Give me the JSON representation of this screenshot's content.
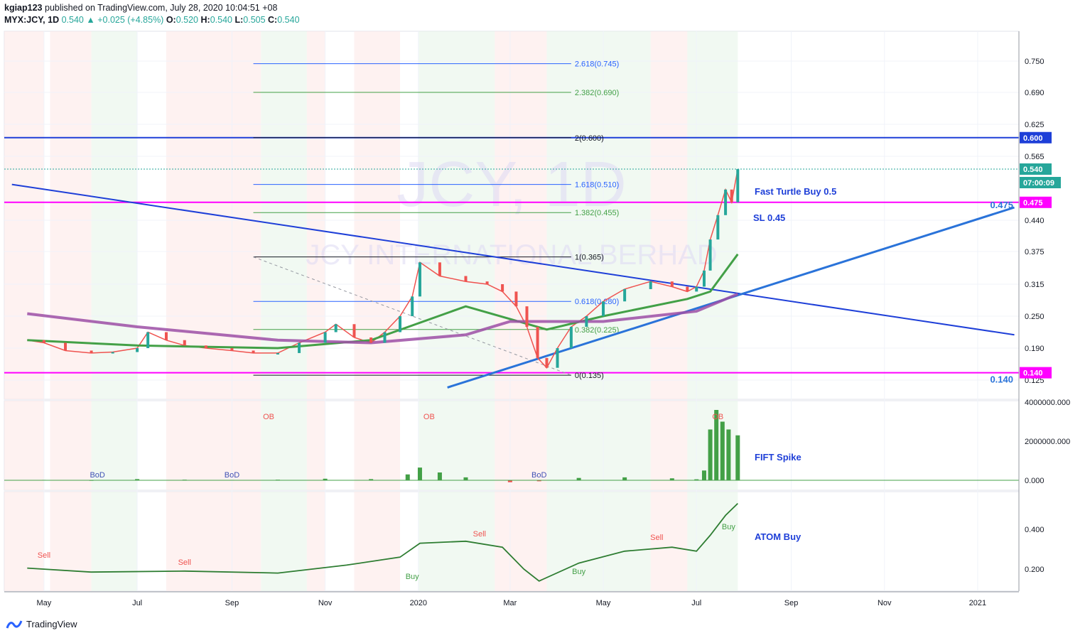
{
  "header": {
    "publisher": "kgiap123",
    "published_text": "published on TradingView.com, July 28, 2020 10:04:51 +08",
    "symbol": "MYX:JCY, 1D",
    "last": "0.540",
    "change": "+0.025 (+4.85%)",
    "o_label": "O:",
    "o": "0.520",
    "h_label": "H:",
    "h": "0.540",
    "l_label": "L:",
    "l": "0.505",
    "c_label": "C:",
    "c": "0.540"
  },
  "watermark": {
    "line1": "JCY, 1D",
    "line2": "JCY INTERNATIONAL BERHAD"
  },
  "footer": {
    "brand": "TradingView"
  },
  "colors": {
    "up": "#26a69a",
    "down": "#ef5350",
    "magenta": "#ff00ff",
    "blue": "#1e3fd8",
    "ema200": "#9c4fa6",
    "ema50": "#43a047",
    "ema_fast": "#ef5350"
  },
  "chart_data": [
    {
      "type": "line",
      "pane": "price",
      "x_ticks": [
        "May",
        "Jul",
        "Sep",
        "Nov",
        "2020",
        "Mar",
        "May",
        "Jul",
        "Sep",
        "Nov",
        "2021"
      ],
      "y_ticks": [
        "0.750",
        "0.690",
        "0.625",
        "0.565",
        "0.440",
        "0.375",
        "0.315",
        "0.250",
        "0.190",
        "0.125"
      ],
      "ylim": [
        0.11,
        0.79
      ],
      "price_badges": [
        {
          "value": "0.600",
          "color": "#1e3fd8"
        },
        {
          "value": "0.540",
          "color": "#26a69a"
        },
        {
          "value": "07:00:09",
          "color": "#26a69a"
        },
        {
          "value": "0.475",
          "color": "#ff00ff"
        },
        {
          "value": "0.140",
          "color": "#ff00ff"
        }
      ],
      "right_labels": [
        "0.475",
        "0.140"
      ],
      "fib_levels": [
        {
          "label": "2.618(0.745)",
          "value": 0.745
        },
        {
          "label": "2.382(0.690)",
          "value": 0.69
        },
        {
          "label": "2(0.600)",
          "value": 0.6
        },
        {
          "label": "1.618(0.510)",
          "value": 0.51
        },
        {
          "label": "1.382(0.455)",
          "value": 0.455
        },
        {
          "label": "1(0.365)",
          "value": 0.365
        },
        {
          "label": "0.618(0.280)",
          "value": 0.28
        },
        {
          "label": "0.382(0.225)",
          "value": 0.225
        },
        {
          "label": "0(0.135)",
          "value": 0.135
        }
      ],
      "horizontal_lines": [
        {
          "value": 0.6,
          "color": "#1e3fd8"
        },
        {
          "value": 0.475,
          "color": "#ff00ff"
        },
        {
          "value": 0.14,
          "color": "#ff00ff"
        },
        {
          "value": 0.54,
          "color": "#26a69a",
          "style": "dotted"
        }
      ],
      "annotations": [
        "Fast Turtle Buy 0.5",
        "SL 0.45"
      ],
      "series": [
        {
          "name": "",
          "x": [
            "2019-04-20",
            "2019-05-01",
            "2019-05-15",
            "2019-06-01",
            "2019-06-15",
            "2019-07-01",
            "2019-07-08",
            "2019-07-20",
            "2019-08-01",
            "2019-08-15",
            "2019-09-01",
            "2019-09-15",
            "2019-10-01",
            "2019-10-15",
            "2019-11-01",
            "2019-11-08",
            "2019-11-20",
            "2019-12-01",
            "2019-12-10",
            "2019-12-20",
            "2019-12-28",
            "2020-01-02",
            "2020-01-15",
            "2020-02-01",
            "2020-02-15",
            "2020-02-25",
            "2020-03-05",
            "2020-03-12",
            "2020-03-19",
            "2020-03-25",
            "2020-04-01",
            "2020-04-10",
            "2020-04-20",
            "2020-05-01",
            "2020-05-15",
            "2020-06-01",
            "2020-06-15",
            "2020-06-25",
            "2020-07-01",
            "2020-07-06",
            "2020-07-10",
            "2020-07-15",
            "2020-07-20",
            "2020-07-24",
            "2020-07-28"
          ],
          "values": [
            0.205,
            0.2,
            0.185,
            0.18,
            0.182,
            0.19,
            0.22,
            0.205,
            0.195,
            0.19,
            0.185,
            0.18,
            0.18,
            0.2,
            0.22,
            0.235,
            0.21,
            0.2,
            0.22,
            0.25,
            0.29,
            0.355,
            0.33,
            0.32,
            0.315,
            0.3,
            0.27,
            0.23,
            0.17,
            0.15,
            0.19,
            0.23,
            0.25,
            0.28,
            0.305,
            0.32,
            0.31,
            0.3,
            0.31,
            0.34,
            0.4,
            0.45,
            0.5,
            0.475,
            0.54
          ]
        },
        {
          "name": "",
          "x": [
            "2019-04-20",
            "2019-07-01",
            "2019-10-01",
            "2019-12-01",
            "2020-02-01",
            "2020-03-25",
            "2020-05-01",
            "2020-06-25",
            "2020-07-10",
            "2020-07-28"
          ],
          "values": [
            0.205,
            0.195,
            0.19,
            0.205,
            0.27,
            0.225,
            0.25,
            0.285,
            0.3,
            0.37
          ]
        },
        {
          "name": "",
          "x": [
            "2019-04-20",
            "2019-07-01",
            "2019-10-01",
            "2019-12-01",
            "2020-02-01",
            "2020-03-01",
            "2020-05-01",
            "2020-07-01",
            "2020-07-28"
          ],
          "values": [
            0.255,
            0.23,
            0.205,
            0.2,
            0.215,
            0.24,
            0.24,
            0.26,
            0.295
          ]
        }
      ],
      "trendlines": [
        {
          "from": {
            "x": "2019-04-10",
            "y": 0.51
          },
          "to": {
            "x": "2021-01-25",
            "y": 0.215
          }
        },
        {
          "from": {
            "x": "2020-01-20",
            "y": 0.11
          },
          "to": {
            "x": "2021-01-25",
            "y": 0.465
          }
        }
      ]
    },
    {
      "type": "bar",
      "pane": "FIFT",
      "annotation": "FIFT Spike",
      "y_ticks": [
        "4000000.000",
        "2000000.000",
        "0.000"
      ],
      "markers": [
        "OB",
        "BoD"
      ],
      "x": [
        "2019-05-01",
        "2019-06-01",
        "2019-07-01",
        "2019-08-01",
        "2019-09-01",
        "2019-10-01",
        "2019-11-01",
        "2019-12-01",
        "2019-12-25",
        "2020-01-02",
        "2020-01-15",
        "2020-02-01",
        "2020-03-01",
        "2020-03-20",
        "2020-04-15",
        "2020-05-15",
        "2020-06-15",
        "2020-07-01",
        "2020-07-06",
        "2020-07-10",
        "2020-07-14",
        "2020-07-18",
        "2020-07-22",
        "2020-07-28"
      ],
      "values": [
        20000,
        10000,
        60000,
        30000,
        20000,
        30000,
        80000,
        60000,
        300000,
        650000,
        400000,
        150000,
        -100000,
        -50000,
        120000,
        150000,
        100000,
        50000,
        500000,
        2600000,
        3600000,
        3000000,
        2600000,
        2300000
      ]
    },
    {
      "type": "line",
      "pane": "ATOM",
      "annotation": "ATOM Buy",
      "y_ticks": [
        "0.400",
        "0.200"
      ],
      "signal_labels": [
        "Buy",
        "Sell"
      ],
      "x": [
        "2019-04-20",
        "2019-06-01",
        "2019-08-01",
        "2019-10-01",
        "2019-11-15",
        "2019-12-20",
        "2020-01-02",
        "2020-02-01",
        "2020-02-25",
        "2020-03-10",
        "2020-03-20",
        "2020-04-15",
        "2020-05-15",
        "2020-06-15",
        "2020-07-01",
        "2020-07-10",
        "2020-07-20",
        "2020-07-28"
      ],
      "values": [
        0.205,
        0.185,
        0.19,
        0.18,
        0.22,
        0.26,
        0.33,
        0.34,
        0.31,
        0.2,
        0.14,
        0.23,
        0.29,
        0.31,
        0.29,
        0.37,
        0.47,
        0.53
      ]
    }
  ]
}
